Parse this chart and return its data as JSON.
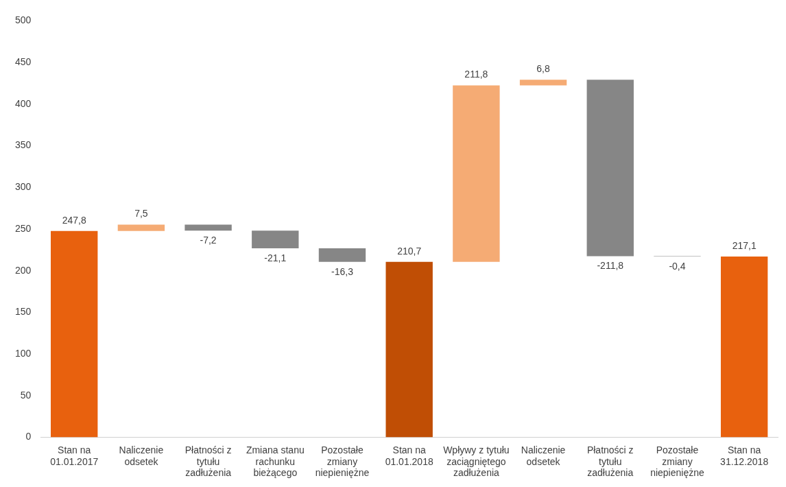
{
  "chart_data": {
    "type": "bar",
    "categories": [
      "Stan na 01.01.2017",
      "Naliczenie odsetek",
      "Płatności z tytułu zadłużenia",
      "Zmiana stanu rachunku bieżącego",
      "Pozostałe zmiany niepieniężne",
      "Stan na 01.01.2018",
      "Wpływy z tytułu zaciągniętego zadłużenia",
      "Naliczenie odsetek",
      "Płatności z tytułu zadłużenia",
      "Pozostałe zmiany niepieniężne",
      "Stan na 31.12.2018"
    ],
    "values": [
      247.8,
      7.5,
      -7.2,
      -21.1,
      -16.3,
      210.7,
      211.8,
      6.8,
      -211.8,
      -0.4,
      217.1
    ],
    "base": [
      0,
      247.8,
      255.3,
      248.1,
      227,
      0,
      210.7,
      422.5,
      429.3,
      217.5,
      0
    ],
    "colors": [
      "#e8610e",
      "#f5ab74",
      "#868686",
      "#868686",
      "#868686",
      "#c04e05",
      "#f5ab74",
      "#f5ab74",
      "#868686",
      "#868686",
      "#e8610e"
    ],
    "value_labels": [
      "247,8",
      "7,5",
      "-7,2",
      "-21,1",
      "-16,3",
      "210,7",
      "211,8",
      "6,8",
      "-211,8",
      "-0,4",
      "217,1"
    ],
    "ylim": [
      0,
      500
    ],
    "yticks": [
      0,
      50,
      100,
      150,
      200,
      250,
      300,
      350,
      400,
      450,
      500
    ],
    "grid": false,
    "legend": false
  }
}
